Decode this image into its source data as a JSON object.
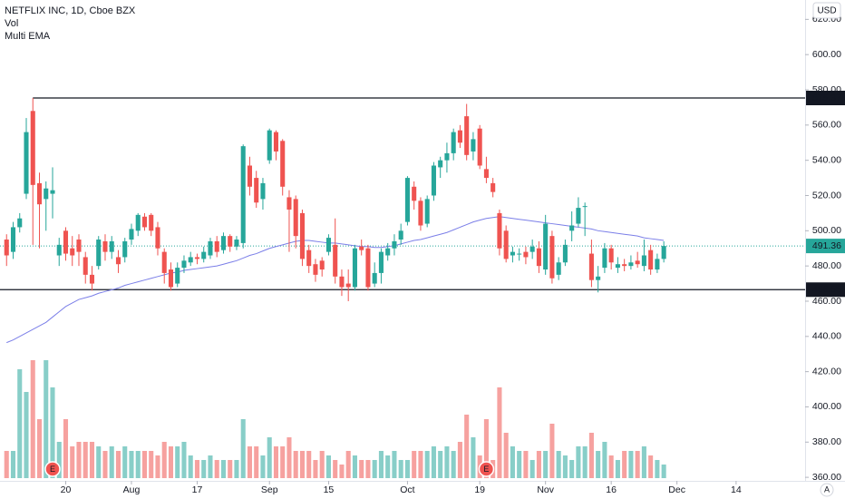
{
  "chart_data": {
    "type": "candlestick",
    "title": "NETFLIX INC, 1D, Cboe BZX",
    "indicators": [
      "Vol",
      "Multi EMA"
    ],
    "currency": "USD",
    "scale_mode": "A",
    "up_color": "#26a69a",
    "down_color": "#ef5350",
    "ema_color": "#7b7fe8",
    "xlim": [
      -1,
      121.5
    ],
    "ylim": [
      358,
      631
    ],
    "yticks": [
      {
        "value": 360,
        "label": "360.00"
      },
      {
        "value": 380,
        "label": "380.00"
      },
      {
        "value": 400,
        "label": "400.00"
      },
      {
        "value": 420,
        "label": "420.00"
      },
      {
        "value": 440,
        "label": "440.00"
      },
      {
        "value": 460,
        "label": "460.00"
      },
      {
        "value": 480,
        "label": "480.00"
      },
      {
        "value": 500,
        "label": "500.00"
      },
      {
        "value": 520,
        "label": "520.00"
      },
      {
        "value": 540,
        "label": "540.00"
      },
      {
        "value": 560,
        "label": "560.00"
      },
      {
        "value": 580,
        "label": "580.00"
      },
      {
        "value": 600,
        "label": "600.00"
      },
      {
        "value": 620,
        "label": "620.00"
      }
    ],
    "xticks": [
      {
        "value": 9,
        "label": "20"
      },
      {
        "value": 19,
        "label": "Aug"
      },
      {
        "value": 29,
        "label": "17"
      },
      {
        "value": 40,
        "label": "Sep"
      },
      {
        "value": 49,
        "label": "15"
      },
      {
        "value": 61,
        "label": "Oct"
      },
      {
        "value": 72,
        "label": "19"
      },
      {
        "value": 82,
        "label": "Nov"
      },
      {
        "value": 92,
        "label": "16"
      },
      {
        "value": 102,
        "label": "Dec"
      },
      {
        "value": 111,
        "label": "14"
      }
    ],
    "open": [
      495,
      488,
      502,
      521,
      568,
      527,
      518,
      521,
      486,
      500,
      490,
      495,
      485,
      475,
      480,
      494,
      488,
      485,
      485,
      495,
      500,
      508,
      509,
      502,
      488,
      478,
      470,
      479,
      482,
      485,
      484,
      486,
      494,
      489,
      497,
      491,
      493,
      537,
      530,
      518,
      540,
      556,
      551,
      519,
      518,
      510,
      489,
      481,
      483,
      488,
      492,
      474,
      470,
      468,
      491,
      490,
      470,
      476,
      486,
      490,
      495,
      505,
      525,
      517,
      504,
      520,
      536,
      540,
      544,
      557,
      565,
      545,
      558,
      535,
      527,
      510,
      500,
      486,
      487,
      488,
      488,
      490,
      478,
      497,
      475,
      482,
      500,
      504,
      514,
      487,
      472,
      479,
      490,
      479,
      481,
      480,
      483,
      480,
      489,
      478,
      484
    ],
    "high": [
      498,
      505,
      510,
      564,
      575.37,
      533,
      528,
      536,
      496,
      502,
      497,
      498,
      488,
      480,
      497,
      498,
      497,
      489,
      496,
      504,
      510,
      510,
      510,
      505,
      490,
      482,
      482,
      486,
      488,
      487,
      491,
      496,
      497,
      499,
      498,
      497,
      549,
      542,
      534,
      530,
      558,
      557,
      552,
      523,
      520,
      512,
      492,
      484,
      485,
      498,
      507,
      478,
      478,
      492,
      495,
      492,
      482,
      490,
      493,
      498,
      504,
      531,
      528,
      519,
      520,
      539,
      542,
      550,
      558,
      560,
      572,
      556,
      560,
      542,
      530,
      512,
      503,
      491,
      490,
      491,
      495,
      494,
      509,
      500,
      485,
      495,
      511,
      519,
      516,
      495,
      480,
      493,
      492,
      485,
      484,
      486,
      488,
      495,
      492,
      487,
      494
    ],
    "low": [
      480,
      484,
      499,
      518,
      492,
      490,
      500,
      507,
      480,
      483,
      480,
      480,
      470,
      466,
      478,
      483,
      484,
      476,
      482,
      492,
      497,
      500,
      497,
      486,
      470,
      466,
      468,
      476,
      480,
      481,
      482,
      484,
      485,
      487,
      488,
      489,
      490,
      520,
      513,
      512,
      538,
      540,
      520,
      488,
      490,
      480,
      476,
      471,
      474,
      486,
      470,
      463,
      460,
      466,
      486,
      466,
      468,
      470,
      483,
      486,
      492,
      503,
      512,
      500,
      502,
      517,
      530,
      533,
      540,
      547,
      540,
      540,
      535,
      527,
      519,
      486,
      482,
      482,
      483,
      481,
      484,
      476,
      475,
      470,
      472,
      480,
      494,
      502,
      497,
      468,
      465,
      476,
      478,
      476,
      477,
      478,
      479,
      477,
      475,
      476,
      482
    ],
    "close": [
      486,
      502,
      507,
      556,
      526,
      515,
      524,
      523,
      492,
      487,
      486,
      488,
      475,
      470,
      495,
      488,
      494,
      481,
      494,
      501,
      509,
      502,
      500,
      490,
      476,
      468,
      479,
      483,
      485,
      484,
      488,
      494,
      488,
      497,
      491,
      495,
      548,
      525,
      516,
      527,
      557,
      545,
      525,
      512,
      497,
      484,
      480,
      475,
      478,
      496,
      474,
      468,
      468,
      490,
      489,
      468,
      476,
      488,
      490,
      494,
      500,
      530,
      517,
      503,
      518,
      537,
      540,
      544,
      556,
      550,
      543,
      552,
      537,
      530,
      522,
      490,
      484,
      488,
      487,
      485,
      491,
      480,
      504,
      473,
      482,
      492,
      503,
      513,
      514,
      472,
      474,
      490,
      482,
      481,
      480,
      482,
      481,
      486,
      478,
      484,
      491.36
    ],
    "volume": [
      6,
      6,
      24,
      19,
      26,
      13,
      26,
      20,
      8,
      13,
      7,
      8,
      8,
      8,
      7,
      6,
      7,
      6,
      7,
      6,
      6,
      6,
      6,
      5,
      8,
      7,
      7,
      8,
      5,
      4,
      4,
      5,
      4,
      4,
      4,
      4,
      13,
      7,
      7,
      5,
      9,
      7,
      7,
      9,
      6,
      6,
      6,
      4,
      6,
      5,
      4,
      3,
      6,
      5,
      4,
      4,
      4,
      6,
      5,
      6,
      4,
      4,
      6,
      6,
      6,
      7,
      6,
      7,
      6,
      8,
      14,
      9,
      5,
      13,
      4,
      20,
      10,
      7,
      6,
      6,
      4,
      6,
      6,
      12,
      6,
      5,
      4,
      7,
      7,
      10,
      6,
      8,
      5,
      4,
      6,
      6,
      6,
      7,
      5,
      4,
      3
    ],
    "ema_values": [
      436.5,
      438,
      440,
      442,
      444,
      446,
      448,
      451,
      454,
      457,
      459,
      461,
      462,
      463,
      464.5,
      465.5,
      466.5,
      467.5,
      469,
      470,
      471,
      472,
      473,
      474,
      475,
      476,
      476.5,
      477.5,
      478,
      478.5,
      479,
      479.5,
      480,
      481,
      482,
      483,
      484.5,
      486,
      487,
      488.5,
      490,
      491,
      492,
      493,
      494,
      494.5,
      494.5,
      494,
      493.5,
      493,
      493,
      492.5,
      492,
      491.5,
      491,
      491,
      490.5,
      490.5,
      491,
      491.5,
      492.5,
      493.5,
      494.5,
      495,
      496,
      497,
      498,
      499,
      500.5,
      502,
      503.5,
      505,
      506,
      507,
      507.5,
      508,
      507.5,
      507,
      506.5,
      506,
      505.5,
      505,
      504.5,
      504,
      503.5,
      503,
      502.5,
      502,
      501.5,
      501,
      500,
      499.5,
      499,
      498.5,
      498,
      497.5,
      497,
      496,
      495.5,
      495,
      494.5
    ],
    "levels": [
      575.37,
      466.55
    ],
    "earnings": [
      {
        "x": 7,
        "label": "E"
      },
      {
        "x": 73,
        "label": "E"
      }
    ]
  }
}
